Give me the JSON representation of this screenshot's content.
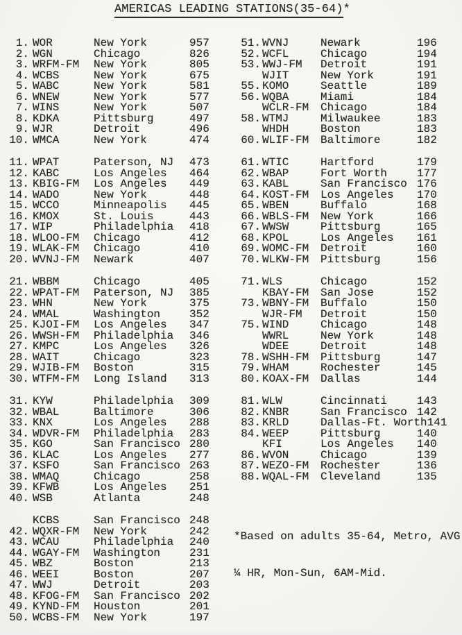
{
  "title": {
    "main": "AMERICAS LEADING STATIONS(35-64)",
    "suffix": "*"
  },
  "colors": {
    "paper": "#f7f6f2",
    "ink": "#262626"
  },
  "footnote": {
    "line1": "*Based on adults 35-64, Metro, AVG",
    "line2": "¼ HR, Mon-Sun, 6AM-Mid."
  },
  "groups": {
    "left1": [
      {
        "rank": "1.",
        "call": "WOR",
        "city": "New York",
        "value": "957"
      },
      {
        "rank": "2.",
        "call": "WGN",
        "city": "Chicago",
        "value": "826"
      },
      {
        "rank": "3.",
        "call": "WRFM-FM",
        "city": "New York",
        "value": "805"
      },
      {
        "rank": "4.",
        "call": "WCBS",
        "city": "New York",
        "value": "675"
      },
      {
        "rank": "5.",
        "call": "WABC",
        "city": "New York",
        "value": "581"
      },
      {
        "rank": "6.",
        "call": "WNEW",
        "city": "New York",
        "value": "577"
      },
      {
        "rank": "7.",
        "call": "WINS",
        "city": "New York",
        "value": "507"
      },
      {
        "rank": "8.",
        "call": "KDKA",
        "city": "Pittsburg",
        "value": "497"
      },
      {
        "rank": "9.",
        "call": "WJR",
        "city": "Detroit",
        "value": "496"
      },
      {
        "rank": "10.",
        "call": "WMCA",
        "city": "New York",
        "value": "474"
      }
    ],
    "left2": [
      {
        "rank": "11.",
        "call": "WPAT",
        "city": "Paterson, NJ",
        "value": "473"
      },
      {
        "rank": "12.",
        "call": "KABC",
        "city": "Los Angeles",
        "value": "464"
      },
      {
        "rank": "13.",
        "call": "KBIG-FM",
        "city": "Los Angeles",
        "value": "449"
      },
      {
        "rank": "14.",
        "call": "WADO",
        "city": "New York",
        "value": "448"
      },
      {
        "rank": "15.",
        "call": "WCCO",
        "city": "Minneapolis",
        "value": "445"
      },
      {
        "rank": "16.",
        "call": "KMOX",
        "city": "St. Louis",
        "value": "443"
      },
      {
        "rank": "17.",
        "call": "WIP",
        "city": "Philadelphia",
        "value": "418"
      },
      {
        "rank": "18.",
        "call": "WLOO-FM",
        "city": "Chicago",
        "value": "412"
      },
      {
        "rank": "19.",
        "call": "WLAK-FM",
        "city": "Chicago",
        "value": "410"
      },
      {
        "rank": "20.",
        "call": "WVNJ-FM",
        "city": "Newark",
        "value": "407"
      }
    ],
    "left3": [
      {
        "rank": "21.",
        "call": "WBBM",
        "city": "Chicago",
        "value": "405"
      },
      {
        "rank": "22.",
        "call": "WPAT-FM",
        "city": "Paterson, NJ",
        "value": "385"
      },
      {
        "rank": "23.",
        "call": "WHN",
        "city": "New York",
        "value": "375"
      },
      {
        "rank": "24.",
        "call": "WMAL",
        "city": "Washington",
        "value": "352"
      },
      {
        "rank": "25.",
        "call": "KJOI-FM",
        "city": "Los Angeles",
        "value": "347"
      },
      {
        "rank": "26.",
        "call": "WWSH-FM",
        "city": "Philadelphia",
        "value": "346"
      },
      {
        "rank": "27.",
        "call": "KMPC",
        "city": "Los Angeles",
        "value": "326"
      },
      {
        "rank": "28.",
        "call": "WAIT",
        "city": "Chicago",
        "value": "323"
      },
      {
        "rank": "29.",
        "call": "WJIB-FM",
        "city": "Boston",
        "value": "315"
      },
      {
        "rank": "30.",
        "call": "WTFM-FM",
        "city": "Long Island",
        "value": "313"
      }
    ],
    "left4": [
      {
        "rank": "31.",
        "call": "KYW",
        "city": "Philadelphia",
        "value": "309"
      },
      {
        "rank": "32.",
        "call": "WBAL",
        "city": "Baltimore",
        "value": "306"
      },
      {
        "rank": "33.",
        "call": "KNX",
        "city": "Los Angeles",
        "value": "288"
      },
      {
        "rank": "34.",
        "call": "WDVR-FM",
        "city": "Philadelphia",
        "value": "283"
      },
      {
        "rank": "35.",
        "call": "KGO",
        "city": "San Francisco",
        "value": "280"
      },
      {
        "rank": "36.",
        "call": "KLAC",
        "city": "Los Angeles",
        "value": "277"
      },
      {
        "rank": "37.",
        "call": "KSFO",
        "city": "San Francisco",
        "value": "263"
      },
      {
        "rank": "38.",
        "call": "WMAQ",
        "city": "Chicago",
        "value": "258"
      },
      {
        "rank": "39.",
        "call": "KFWB",
        "city": "Los Angeles",
        "value": "251"
      },
      {
        "rank": "40.",
        "call": "WSB",
        "city": "Atlanta",
        "value": "248"
      }
    ],
    "left5": [
      {
        "rank": "",
        "call": "KCBS",
        "city": "San Francisco",
        "value": "248"
      },
      {
        "rank": "42.",
        "call": "WQXR-FM",
        "city": "New York",
        "value": "242"
      },
      {
        "rank": "43.",
        "call": "WCAU",
        "city": "Philadelphia",
        "value": "240"
      },
      {
        "rank": "44.",
        "call": "WGAY-FM",
        "city": "Washington",
        "value": "231"
      },
      {
        "rank": "45.",
        "call": "WBZ",
        "city": "Boston",
        "value": "213"
      },
      {
        "rank": "46.",
        "call": "WEEI",
        "city": "Boston",
        "value": "207"
      },
      {
        "rank": "47.",
        "call": "WWJ",
        "city": "Detroit",
        "value": "203"
      },
      {
        "rank": "48.",
        "call": "KFOG-FM",
        "city": "San Francisco",
        "value": "202"
      },
      {
        "rank": "49.",
        "call": "KYND-FM",
        "city": "Houston",
        "value": "201"
      },
      {
        "rank": "50.",
        "call": "WCBS-FM",
        "city": "New York",
        "value": "197"
      }
    ],
    "right1": [
      {
        "rank": "51.",
        "call": "WVNJ",
        "city": "Newark",
        "value": "196"
      },
      {
        "rank": "52.",
        "call": "WCFL",
        "city": "Chicago",
        "value": "194"
      },
      {
        "rank": "53.",
        "call": "WWJ-FM",
        "city": "Detroit",
        "value": "191"
      },
      {
        "rank": "",
        "call": "WJIT",
        "city": "New York",
        "value": "191"
      },
      {
        "rank": "55.",
        "call": "KOMO",
        "city": "Seattle",
        "value": "189"
      },
      {
        "rank": "56.",
        "call": "WQBA",
        "city": "Miami",
        "value": "184"
      },
      {
        "rank": "",
        "call": "WCLR-FM",
        "city": "Chicago",
        "value": "184"
      },
      {
        "rank": "58.",
        "call": "WTMJ",
        "city": "Milwaukee",
        "value": "183"
      },
      {
        "rank": "",
        "call": "WHDH",
        "city": "Boston",
        "value": "183"
      },
      {
        "rank": "60.",
        "call": "WLIF-FM",
        "city": "Baltimore",
        "value": "182"
      }
    ],
    "right2": [
      {
        "rank": "61.",
        "call": "WTIC",
        "city": "Hartford",
        "value": "179"
      },
      {
        "rank": "62.",
        "call": "WBAP",
        "city": "Fort Worth",
        "value": "177"
      },
      {
        "rank": "63.",
        "call": "KABL",
        "city": "San Francisco",
        "value": "176"
      },
      {
        "rank": "64.",
        "call": "KOST-FM",
        "city": "Los Angeles",
        "value": "170"
      },
      {
        "rank": "65.",
        "call": "WBEN",
        "city": "Buffalo",
        "value": "168"
      },
      {
        "rank": "66.",
        "call": "WBLS-FM",
        "city": "New York",
        "value": "166"
      },
      {
        "rank": "67.",
        "call": "WWSW",
        "city": "Pittsburg",
        "value": "165"
      },
      {
        "rank": "68.",
        "call": "KPOL",
        "city": "Los Angeles",
        "value": "161"
      },
      {
        "rank": "69.",
        "call": "WOMC-FM",
        "city": "Detroit",
        "value": "160"
      },
      {
        "rank": "70.",
        "call": "WLKW-FM",
        "city": "Pittsburg",
        "value": "156"
      }
    ],
    "right3": [
      {
        "rank": "71.",
        "call": "WLS",
        "city": "Chicago",
        "value": "152"
      },
      {
        "rank": "",
        "call": "KBAY-FM",
        "city": "San Jose",
        "value": "152"
      },
      {
        "rank": "73.",
        "call": "WBNY-FM",
        "city": "Buffalo",
        "value": "150"
      },
      {
        "rank": "",
        "call": "WJR-FM",
        "city": "Detroit",
        "value": "150"
      },
      {
        "rank": "75.",
        "call": "WIND",
        "city": "Chicago",
        "value": "148"
      },
      {
        "rank": "",
        "call": "WWRL",
        "city": "New York",
        "value": "148"
      },
      {
        "rank": "",
        "call": "WDEE",
        "city": "Detroit",
        "value": "148"
      },
      {
        "rank": "78.",
        "call": "WSHH-FM",
        "city": "Pittsburg",
        "value": "147"
      },
      {
        "rank": "79.",
        "call": "WHAM",
        "city": "Rochester",
        "value": "145"
      },
      {
        "rank": "80.",
        "call": "KOAX-FM",
        "city": "Dallas",
        "value": "144"
      }
    ],
    "right4": [
      {
        "rank": "81.",
        "call": "WLW",
        "city": "Cincinnati",
        "value": "143"
      },
      {
        "rank": "82.",
        "call": "KNBR",
        "city": "San Francisco",
        "value": "142"
      },
      {
        "rank": "83.",
        "call": "KRLD",
        "city": "Dallas-Ft. Worth",
        "value": "141"
      },
      {
        "rank": "84.",
        "call": "WEEP",
        "city": "Pittsburg",
        "value": "140"
      },
      {
        "rank": "",
        "call": "KFI",
        "city": "Los Angeles",
        "value": "140"
      },
      {
        "rank": "86.",
        "call": "WVON",
        "city": "Chicago",
        "value": "139"
      },
      {
        "rank": "87.",
        "call": "WEZO-FM",
        "city": "Rochester",
        "value": "136"
      },
      {
        "rank": "88.",
        "call": "WQAL-FM",
        "city": "Cleveland",
        "value": "135"
      }
    ]
  }
}
